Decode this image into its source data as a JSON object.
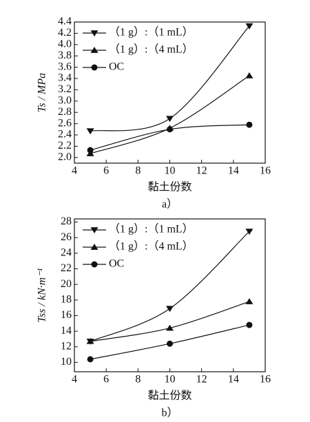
{
  "chart_data": [
    {
      "type": "line",
      "caption": "a）",
      "xlabel": "黏土份数",
      "ylabel": "Ts / MPa",
      "x": [
        5,
        10,
        15
      ],
      "xlim": [
        4,
        16
      ],
      "xticks": [
        4,
        6,
        8,
        10,
        12,
        14,
        16
      ],
      "ylim": [
        1.9,
        4.4
      ],
      "yticks": [
        {
          "value": 2,
          "label": "2.0"
        },
        2.2,
        2.4,
        2.6,
        2.8,
        {
          "value": 3,
          "label": "3.0"
        },
        3.2,
        3.4,
        3.6,
        3.8,
        {
          "value": 4,
          "label": "4.0"
        },
        4.2,
        4.4
      ],
      "legend": "upper left",
      "series": [
        {
          "name": "（1 g）:（1 mL）",
          "color": "#111111",
          "marker": "triangle-down",
          "values": [
            2.47,
            2.69,
            4.33
          ]
        },
        {
          "name": "（1 g）:（4 mL）",
          "color": "#111111",
          "marker": "triangle-up",
          "values": [
            2.07,
            2.52,
            3.45
          ]
        },
        {
          "name": "OC",
          "color": "#111111",
          "marker": "circle",
          "values": [
            2.13,
            2.5,
            2.58
          ]
        }
      ]
    },
    {
      "type": "line",
      "caption": "b）",
      "xlabel": "黏土份数",
      "ylabel": "Tss / kN·m⁻¹",
      "x": [
        5,
        10,
        15
      ],
      "xlim": [
        4,
        16
      ],
      "xticks": [
        4,
        6,
        8,
        10,
        12,
        14,
        16
      ],
      "ylim": [
        8.8,
        28.4
      ],
      "yticks": [
        10,
        12,
        14,
        16,
        18,
        20,
        22,
        24,
        26,
        28
      ],
      "legend": "upper left",
      "series": [
        {
          "name": "（1 g）:（1 mL）",
          "color": "#111111",
          "marker": "triangle-down",
          "values": [
            12.7,
            16.9,
            26.8
          ]
        },
        {
          "name": "（1 g）:（4 mL）",
          "color": "#111111",
          "marker": "triangle-up",
          "values": [
            12.7,
            14.4,
            17.8
          ]
        },
        {
          "name": "OC",
          "color": "#111111",
          "marker": "circle",
          "values": [
            10.4,
            12.4,
            14.8
          ]
        }
      ]
    }
  ]
}
